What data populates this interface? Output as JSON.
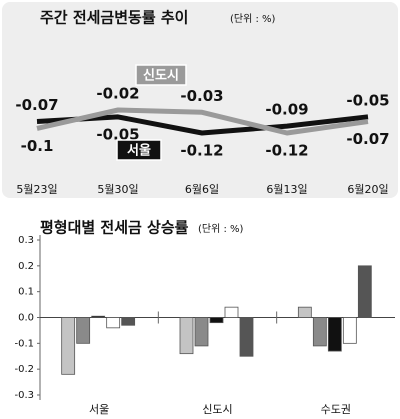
{
  "chart_data": [
    {
      "type": "line",
      "title": "주간 전세금변동률 추이",
      "subtitle": "(단위 : %)",
      "categories": [
        "5월23일",
        "5월30일",
        "6월6일",
        "6월13일",
        "6월20일"
      ],
      "series": [
        {
          "name": "서울",
          "color": "#111111",
          "values": [
            -0.07,
            -0.05,
            -0.12,
            -0.09,
            -0.05
          ]
        },
        {
          "name": "신도시",
          "color": "#9a9a9a",
          "values": [
            -0.1,
            -0.02,
            -0.03,
            -0.12,
            -0.07
          ]
        }
      ]
    },
    {
      "type": "bar",
      "title": "평형대별 전세금 상승률",
      "subtitle": "(단위 : %)",
      "categories": [
        "서울",
        "신도시",
        "수도권"
      ],
      "series": [
        {
          "color": "#c4c4c4",
          "values": [
            -0.22,
            -0.14,
            0.04
          ]
        },
        {
          "color": "#8a8a8a",
          "values": [
            -0.1,
            -0.11,
            -0.11
          ]
        },
        {
          "color": "#111111",
          "values": [
            0.005,
            -0.02,
            -0.13
          ]
        },
        {
          "color": "#ffffff",
          "values": [
            -0.04,
            0.04,
            -0.1
          ]
        },
        {
          "color": "#555555",
          "values": [
            -0.03,
            -0.15,
            0.2
          ]
        }
      ],
      "ylim": [
        -0.3,
        0.3
      ],
      "yticks": [
        0.3,
        0.2,
        0.1,
        {
          "value": 0,
          "label": "0.0"
        },
        -0.1,
        -0.2,
        -0.3
      ]
    }
  ]
}
